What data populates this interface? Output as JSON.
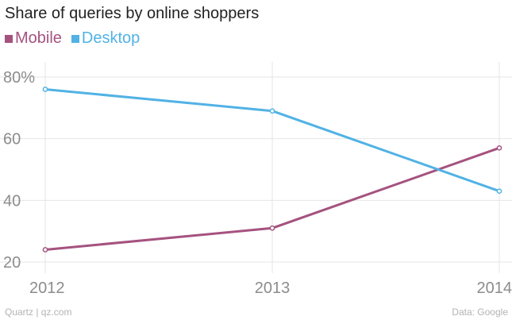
{
  "chart_data": {
    "type": "line",
    "title": "Share of queries by online shoppers",
    "x": [
      "2012",
      "2013",
      "2014"
    ],
    "ylim": [
      20,
      80
    ],
    "yticks": [
      20,
      40,
      60,
      80
    ],
    "ytick_labels": [
      "20",
      "40",
      "60",
      "80%"
    ],
    "grid": true,
    "legend_position": "top-left",
    "series": [
      {
        "name": "Mobile",
        "color": "#a5527f",
        "values": [
          24,
          31,
          57
        ]
      },
      {
        "name": "Desktop",
        "color": "#51b2e5",
        "values": [
          76,
          69,
          43
        ]
      }
    ]
  },
  "footer": {
    "source_left": "Quartz | qz.com",
    "source_right": "Data: Google"
  }
}
